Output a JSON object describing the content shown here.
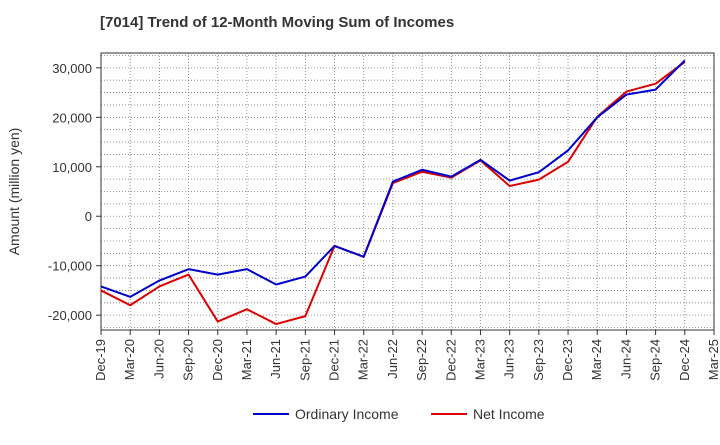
{
  "chart_data": {
    "type": "line",
    "title": "[7014]  Trend of 12-Month Moving Sum of Incomes",
    "xlabel": "",
    "ylabel": "Amount (million yen)",
    "categories": [
      "Dec-19",
      "Mar-20",
      "Jun-20",
      "Sep-20",
      "Dec-20",
      "Mar-21",
      "Jun-21",
      "Sep-21",
      "Dec-21",
      "Mar-22",
      "Jun-22",
      "Sep-22",
      "Dec-22",
      "Mar-23",
      "Jun-23",
      "Sep-23",
      "Dec-23",
      "Mar-24",
      "Jun-24",
      "Sep-24",
      "Dec-24",
      "Mar-25"
    ],
    "yticks": [
      -20000,
      -10000,
      0,
      10000,
      20000,
      30000
    ],
    "ytick_labels": [
      "-20,000",
      "-10,000",
      "0",
      "10,000",
      "20,000",
      "30,000"
    ],
    "ylim": [
      -23000,
      33000
    ],
    "grid": true,
    "legend_position": "bottom",
    "series": [
      {
        "name": "Ordinary Income",
        "color": "#0000cc",
        "values": [
          -14200,
          -16300,
          -13000,
          -10700,
          -11800,
          -10700,
          -13800,
          -12200,
          -6000,
          -8200,
          7000,
          9400,
          8000,
          11400,
          7200,
          8900,
          13300,
          20000,
          24600,
          25600,
          31500,
          null
        ]
      },
      {
        "name": "Net Income",
        "color": "#dd0000",
        "values": [
          -15000,
          -18000,
          -14200,
          -11800,
          -21300,
          -18800,
          -21800,
          -20200,
          -6000,
          -8200,
          6700,
          9000,
          7800,
          11300,
          6100,
          7400,
          11000,
          20100,
          25200,
          26800,
          31200,
          null
        ]
      }
    ]
  }
}
